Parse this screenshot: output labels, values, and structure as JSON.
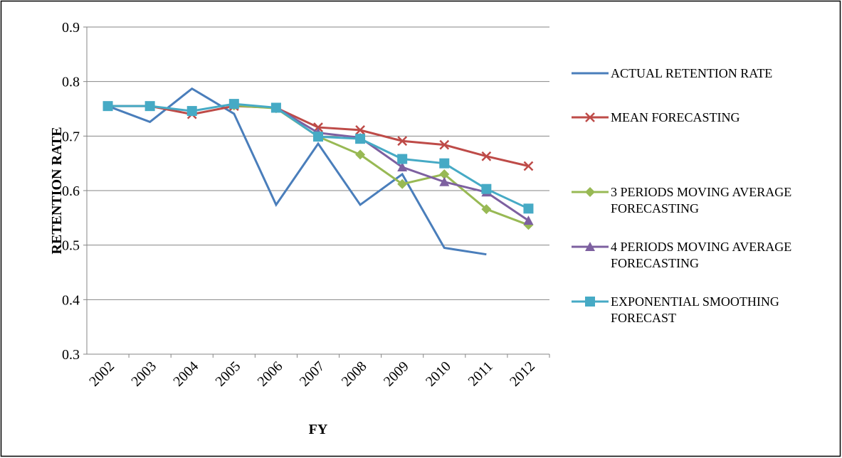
{
  "chart_data": {
    "type": "line",
    "y_label": "RETENTION RATE",
    "x_label": "FY",
    "categories": [
      "2002",
      "2003",
      "2004",
      "2005",
      "2006",
      "2007",
      "2008",
      "2009",
      "2010",
      "2011",
      "2012"
    ],
    "ylim": [
      0.3,
      0.9
    ],
    "yticks": [
      0.3,
      0.4,
      0.5,
      0.6,
      0.7,
      0.8,
      0.9
    ],
    "grid": true,
    "legend": "right",
    "series": [
      {
        "name": "ACTUAL RETENTION RATE",
        "color": "#4a7ebb",
        "marker": "none",
        "values": [
          0.755,
          0.726,
          0.787,
          0.741,
          0.574,
          0.686,
          0.574,
          0.63,
          0.495,
          0.483,
          null
        ]
      },
      {
        "name": "MEAN FORECASTING",
        "color": "#be4b48",
        "marker": "x",
        "values": [
          0.755,
          0.755,
          0.74,
          0.755,
          0.752,
          0.716,
          0.711,
          0.691,
          0.684,
          0.663,
          0.645
        ]
      },
      {
        "name": "3 PERIODS MOVING AVERAGE FORECASTING",
        "color": "#98b954",
        "marker": "diamond",
        "values": [
          null,
          null,
          null,
          0.756,
          0.751,
          0.699,
          0.666,
          0.612,
          0.63,
          0.566,
          0.537
        ]
      },
      {
        "name": "4 PERIODS MOVING AVERAGE FORECASTING",
        "color": "#7d60a0",
        "marker": "triangle",
        "values": [
          null,
          null,
          null,
          null,
          0.752,
          0.706,
          0.697,
          0.643,
          0.616,
          0.597,
          0.545
        ]
      },
      {
        "name": "EXPONENTIAL SMOOTHING FORECAST",
        "color": "#46aac5",
        "marker": "square",
        "values": [
          0.755,
          0.755,
          0.746,
          0.759,
          0.752,
          0.699,
          0.695,
          0.658,
          0.65,
          0.603,
          0.567
        ]
      }
    ]
  }
}
